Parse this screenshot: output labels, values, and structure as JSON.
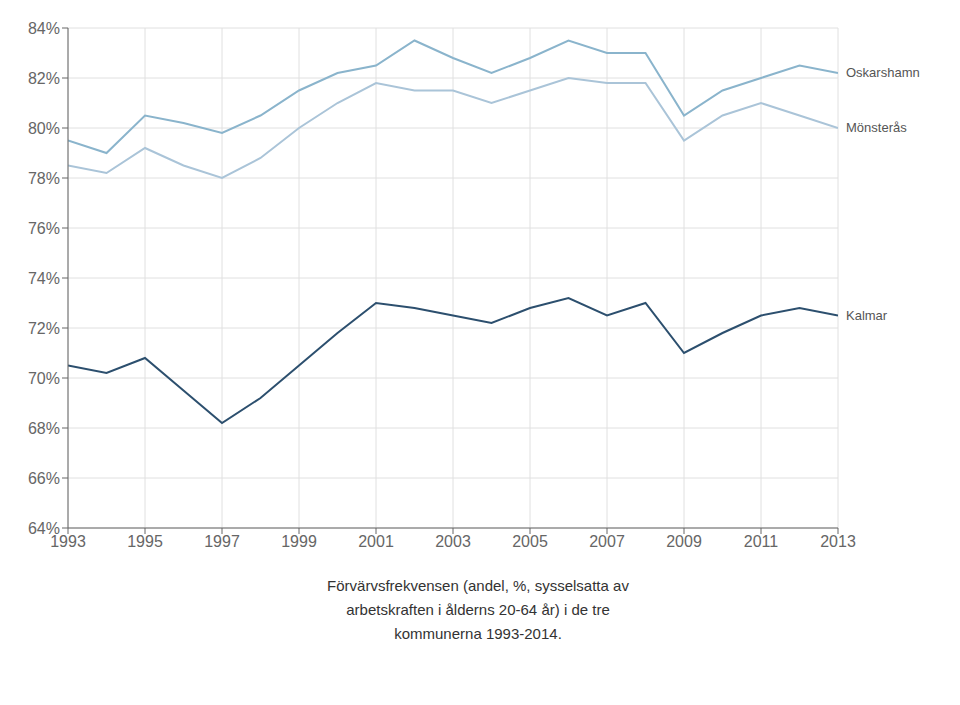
{
  "chart_data": {
    "type": "line",
    "x": [
      1993,
      1994,
      1995,
      1996,
      1997,
      1998,
      1999,
      2000,
      2001,
      2002,
      2003,
      2004,
      2005,
      2006,
      2007,
      2008,
      2009,
      2010,
      2011,
      2012,
      2013
    ],
    "series": [
      {
        "name": "Oskarshamn",
        "color": "#8ab4cc",
        "values": [
          79.5,
          79.0,
          80.5,
          80.2,
          79.8,
          80.5,
          81.5,
          82.2,
          82.5,
          83.5,
          82.8,
          82.2,
          82.8,
          83.5,
          83.0,
          83.0,
          80.5,
          81.5,
          82.0,
          82.5,
          82.2
        ]
      },
      {
        "name": "Mönsterås",
        "color": "#aac4d8",
        "values": [
          78.5,
          78.2,
          79.2,
          78.5,
          78.0,
          78.8,
          80.0,
          81.0,
          81.8,
          81.5,
          81.5,
          81.0,
          81.5,
          82.0,
          81.8,
          81.8,
          79.5,
          80.5,
          81.0,
          80.5,
          80.0
        ]
      },
      {
        "name": "Kalmar",
        "color": "#2c4f6e",
        "values": [
          70.5,
          70.2,
          70.8,
          69.5,
          68.2,
          69.2,
          70.5,
          71.8,
          73.0,
          72.8,
          72.5,
          72.2,
          72.8,
          73.2,
          72.5,
          73.0,
          71.0,
          71.8,
          72.5,
          72.8,
          72.5
        ]
      }
    ],
    "xlim": [
      1993,
      2013
    ],
    "xticks": [
      1993,
      1995,
      1997,
      1999,
      2001,
      2003,
      2005,
      2007,
      2009,
      2011,
      2013
    ],
    "ylim": [
      64,
      84
    ],
    "yticks": [
      {
        "value": 64,
        "label": "64%"
      },
      {
        "value": 66,
        "label": "66%"
      },
      {
        "value": 68,
        "label": "68%"
      },
      {
        "value": 70,
        "label": "70%"
      },
      {
        "value": 72,
        "label": "72%"
      },
      {
        "value": 74,
        "label": "74%"
      },
      {
        "value": 76,
        "label": "76%"
      },
      {
        "value": 78,
        "label": "78%"
      },
      {
        "value": 80,
        "label": "80%"
      },
      {
        "value": 82,
        "label": "82%"
      },
      {
        "value": 84,
        "label": "84%"
      }
    ],
    "grid": true,
    "annotations": [
      "Förvärvsfrekvensen (andel, %, sysselsatta av",
      "arbetskraften i ålderns 20-64 år) i de tre",
      "kommunerna 1993-2014."
    ]
  }
}
